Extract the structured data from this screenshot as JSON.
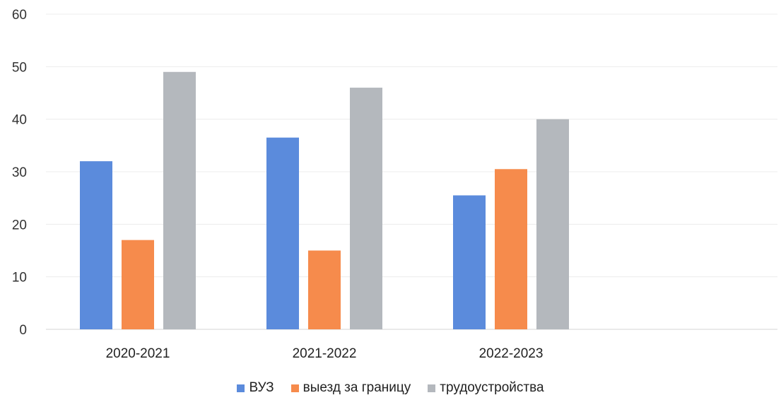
{
  "chart_data": {
    "type": "bar",
    "categories": [
      "2020-2021",
      "2021-2022",
      "2022-2023"
    ],
    "series": [
      {
        "name": "ВУЗ",
        "values": [
          32,
          36.5,
          25.5
        ],
        "color": "#5b8bdc"
      },
      {
        "name": "выезд за границу",
        "values": [
          17,
          15,
          30.5
        ],
        "color": "#f68b4c"
      },
      {
        "name": "трудоустройства",
        "values": [
          49,
          46,
          40
        ],
        "color": "#b4b8bd"
      }
    ],
    "title": "",
    "xlabel": "",
    "ylabel": "",
    "ylim": [
      0,
      60
    ],
    "yticks": [
      "0",
      "10",
      "20",
      "30",
      "40",
      "50",
      "60"
    ],
    "grid": true,
    "legend_position": "bottom"
  }
}
